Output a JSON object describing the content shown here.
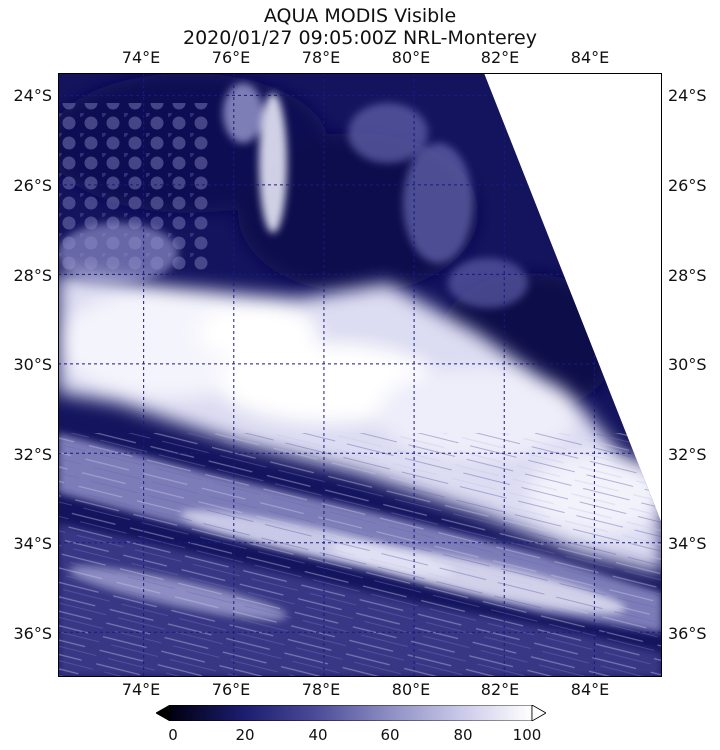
{
  "title": {
    "line1": "AQUA MODIS Visible",
    "line2": "2020/01/27 09:05:00Z NRL-Monterey"
  },
  "map": {
    "longitude_labels": [
      "74°E",
      "76°E",
      "78°E",
      "80°E",
      "82°E",
      "84°E"
    ],
    "latitude_labels": [
      "24°S",
      "26°S",
      "28°S",
      "30°S",
      "32°S",
      "34°S",
      "36°S"
    ],
    "longitudes": [
      74,
      76,
      78,
      80,
      82,
      84
    ],
    "latitudes": [
      -24,
      -26,
      -28,
      -30,
      -32,
      -34,
      -36
    ],
    "lon_range": [
      72.1,
      85.5
    ],
    "lat_range": [
      -37.0,
      -23.5
    ],
    "gridlines": "dashed",
    "gridline_color": "#1a1a80"
  },
  "colorbar": {
    "tick_labels": [
      "0",
      "20",
      "40",
      "60",
      "80",
      "100"
    ],
    "ticks": [
      0,
      20,
      40,
      60,
      80,
      100
    ],
    "range": [
      0,
      100
    ],
    "colors": [
      "#000010",
      "#1c1c6e",
      "#4a4a98",
      "#8c8cc2",
      "#c8c8e8",
      "#ffffff"
    ],
    "extend": "both"
  }
}
